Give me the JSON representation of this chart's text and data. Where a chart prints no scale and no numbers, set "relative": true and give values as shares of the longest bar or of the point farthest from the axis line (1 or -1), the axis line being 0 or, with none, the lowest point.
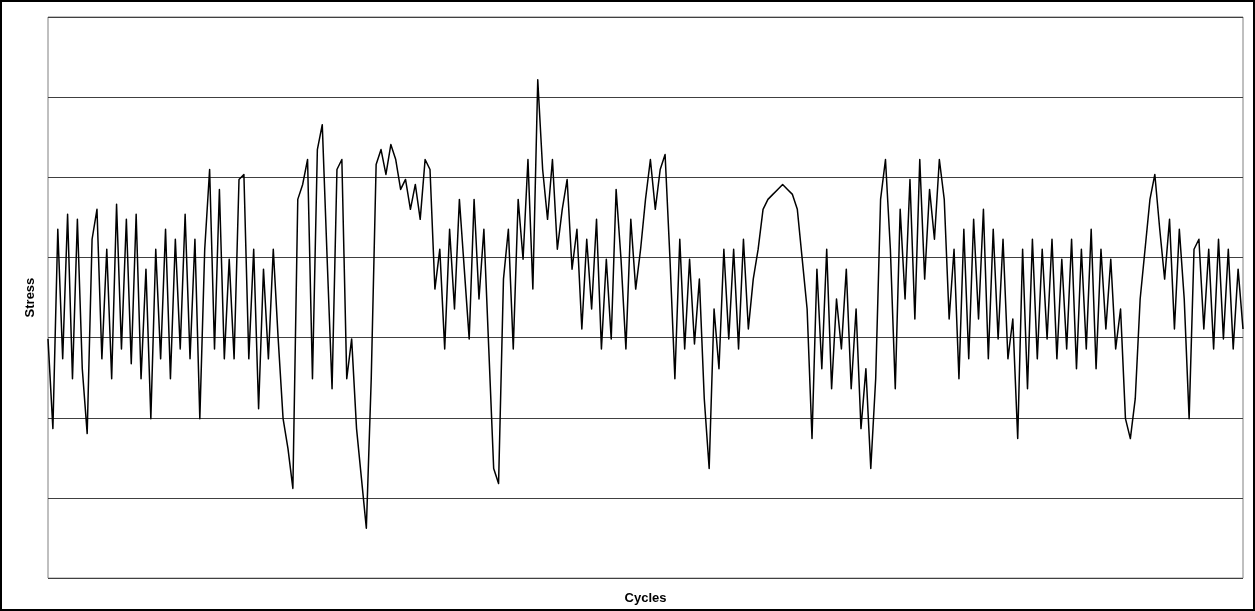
{
  "chart_data": {
    "type": "line",
    "xlabel": "Cycles",
    "ylabel": "Stress",
    "relative": true,
    "grid": "y",
    "line_style": "solid",
    "categories": [
      null,
      null,
      null,
      null,
      null,
      null,
      null,
      null,
      null,
      null,
      null,
      null,
      null,
      null,
      null,
      null,
      null,
      null,
      null,
      null,
      null,
      null,
      null,
      null,
      null,
      null,
      null,
      null,
      null,
      null,
      null,
      null,
      null,
      null,
      null,
      null,
      null,
      null,
      null,
      null,
      null,
      null,
      null,
      null,
      null,
      null,
      null,
      null,
      null,
      null,
      null,
      null,
      null,
      null,
      null,
      null,
      null,
      null,
      null,
      null,
      null,
      null,
      null,
      null,
      null,
      null,
      null,
      null,
      null,
      null,
      null,
      null,
      null,
      null,
      null,
      null,
      null,
      null,
      null,
      null,
      null,
      null,
      null,
      null,
      null,
      null,
      null,
      null,
      null,
      null,
      null,
      null,
      null,
      null,
      null,
      null,
      null,
      null,
      null,
      null,
      null,
      null,
      null,
      null,
      null,
      null,
      null,
      null,
      null,
      null,
      null,
      null,
      null,
      null,
      null,
      null,
      null,
      null,
      null,
      null,
      null,
      null,
      null,
      null,
      null,
      null,
      null,
      null,
      null,
      null,
      null,
      null,
      null,
      null,
      null,
      null,
      null,
      null,
      null,
      null,
      null,
      null,
      null,
      null,
      null,
      null,
      null,
      null,
      null,
      null,
      null,
      null,
      null,
      null,
      null,
      null,
      null,
      null,
      null,
      null,
      null,
      null,
      null,
      null,
      null,
      null,
      null,
      null,
      null,
      null,
      null,
      null,
      null,
      null,
      null,
      null,
      null,
      null,
      null,
      null,
      null,
      null,
      null,
      null,
      null,
      null,
      null,
      null,
      null,
      null,
      null,
      null,
      null,
      null,
      null,
      null,
      null,
      null,
      null,
      null,
      null,
      null,
      null,
      null,
      null,
      null,
      null,
      null,
      null,
      null,
      null,
      null,
      null,
      null,
      null,
      null,
      null,
      null,
      null,
      null,
      null,
      null,
      null,
      null,
      null,
      null,
      null,
      null,
      null,
      null,
      null,
      null,
      null,
      null,
      null,
      null,
      null,
      null,
      null,
      null,
      null,
      null,
      null,
      null,
      null
    ],
    "series": [
      {
        "color": "#000000",
        "values": [
          0.48,
          0.3,
          0.7,
          0.44,
          0.73,
          0.4,
          0.72,
          0.42,
          0.29,
          0.68,
          0.74,
          0.44,
          0.66,
          0.4,
          0.75,
          0.46,
          0.72,
          0.43,
          0.73,
          0.4,
          0.62,
          0.32,
          0.66,
          0.44,
          0.7,
          0.4,
          0.68,
          0.46,
          0.73,
          0.44,
          0.68,
          0.32,
          0.66,
          0.82,
          0.46,
          0.78,
          0.44,
          0.64,
          0.44,
          0.8,
          0.81,
          0.44,
          0.66,
          0.34,
          0.62,
          0.44,
          0.66,
          0.48,
          0.32,
          0.26,
          0.18,
          0.76,
          0.79,
          0.84,
          0.4,
          0.86,
          0.91,
          0.64,
          0.38,
          0.82,
          0.84,
          0.4,
          0.48,
          0.3,
          0.2,
          0.1,
          0.4,
          0.83,
          0.86,
          0.81,
          0.87,
          0.84,
          0.78,
          0.8,
          0.74,
          0.79,
          0.72,
          0.84,
          0.82,
          0.58,
          0.66,
          0.46,
          0.7,
          0.54,
          0.76,
          0.62,
          0.48,
          0.76,
          0.56,
          0.7,
          0.46,
          0.22,
          0.19,
          0.6,
          0.7,
          0.46,
          0.76,
          0.64,
          0.84,
          0.58,
          1.0,
          0.82,
          0.72,
          0.84,
          0.66,
          0.74,
          0.8,
          0.62,
          0.7,
          0.5,
          0.68,
          0.54,
          0.72,
          0.46,
          0.64,
          0.48,
          0.78,
          0.64,
          0.46,
          0.72,
          0.58,
          0.66,
          0.76,
          0.84,
          0.74,
          0.82,
          0.85,
          0.64,
          0.4,
          0.68,
          0.46,
          0.64,
          0.47,
          0.6,
          0.36,
          0.22,
          0.54,
          0.42,
          0.66,
          0.48,
          0.66,
          0.46,
          0.68,
          0.5,
          0.6,
          0.66,
          0.74,
          0.76,
          0.77,
          0.78,
          0.79,
          0.78,
          0.77,
          0.74,
          0.64,
          0.54,
          0.28,
          0.62,
          0.42,
          0.66,
          0.38,
          0.56,
          0.46,
          0.62,
          0.38,
          0.54,
          0.3,
          0.42,
          0.22,
          0.4,
          0.76,
          0.84,
          0.66,
          0.38,
          0.74,
          0.56,
          0.8,
          0.52,
          0.84,
          0.6,
          0.78,
          0.68,
          0.84,
          0.76,
          0.52,
          0.66,
          0.4,
          0.7,
          0.44,
          0.72,
          0.52,
          0.74,
          0.44,
          0.7,
          0.48,
          0.68,
          0.44,
          0.52,
          0.28,
          0.66,
          0.38,
          0.68,
          0.44,
          0.66,
          0.48,
          0.68,
          0.44,
          0.64,
          0.46,
          0.68,
          0.42,
          0.66,
          0.46,
          0.7,
          0.42,
          0.66,
          0.5,
          0.64,
          0.46,
          0.54,
          0.32,
          0.28,
          0.36,
          0.56,
          0.66,
          0.76,
          0.81,
          0.7,
          0.6,
          0.72,
          0.5,
          0.7,
          0.56,
          0.32,
          0.66,
          0.68,
          0.5,
          0.66,
          0.46,
          0.68,
          0.48,
          0.66,
          0.46,
          0.62,
          0.5
        ]
      }
    ]
  }
}
